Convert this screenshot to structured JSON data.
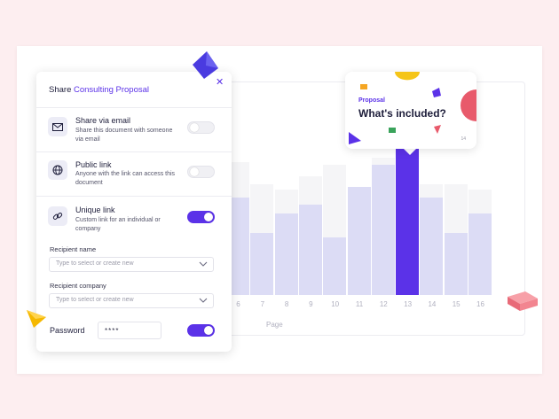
{
  "panel": {
    "title_prefix": "Share",
    "title_highlight": "Consulting Proposal",
    "close_label": "✕",
    "options": [
      {
        "title": "Share via email",
        "description": "Share this document with someone via email",
        "icon": "mail-icon",
        "enabled": false
      },
      {
        "title": "Public link",
        "description": "Anyone with the link can access this document",
        "icon": "globe-icon",
        "enabled": false
      },
      {
        "title": "Unique link",
        "description": "Custom link for an individual or company",
        "icon": "link-icon",
        "enabled": true
      }
    ],
    "recipient_name": {
      "label": "Recipient name",
      "value": "",
      "placeholder": "Type to select or create new"
    },
    "recipient_company": {
      "label": "Recipient company",
      "value": "",
      "placeholder": "Type to select or create new"
    },
    "password": {
      "label": "Password",
      "value": "****",
      "enabled": true
    }
  },
  "preview": {
    "eyebrow": "Proposal",
    "heading": "What's included?",
    "page_number": "14"
  },
  "chart_data": {
    "type": "bar",
    "categories": [
      "6",
      "7",
      "8",
      "9",
      "10",
      "11",
      "12",
      "13",
      "14",
      "15",
      "16"
    ],
    "xlabel": "Page",
    "values": [
      0.66,
      0.42,
      0.55,
      0.61,
      0.39,
      0.73,
      0.88,
      1.0,
      0.66,
      0.42,
      0.55
    ],
    "capacity": [
      0.9,
      0.75,
      0.71,
      0.8,
      0.88,
      0.73,
      0.93,
      1.0,
      0.75,
      0.75,
      0.71
    ],
    "highlighted_category": "13",
    "colors": {
      "bar": "#dcdcf5",
      "highlight": "#5b32e8",
      "background": "#f5f5f7"
    }
  },
  "colors": {
    "accent": "#5b32e8",
    "page_bg": "#fdeef0"
  }
}
